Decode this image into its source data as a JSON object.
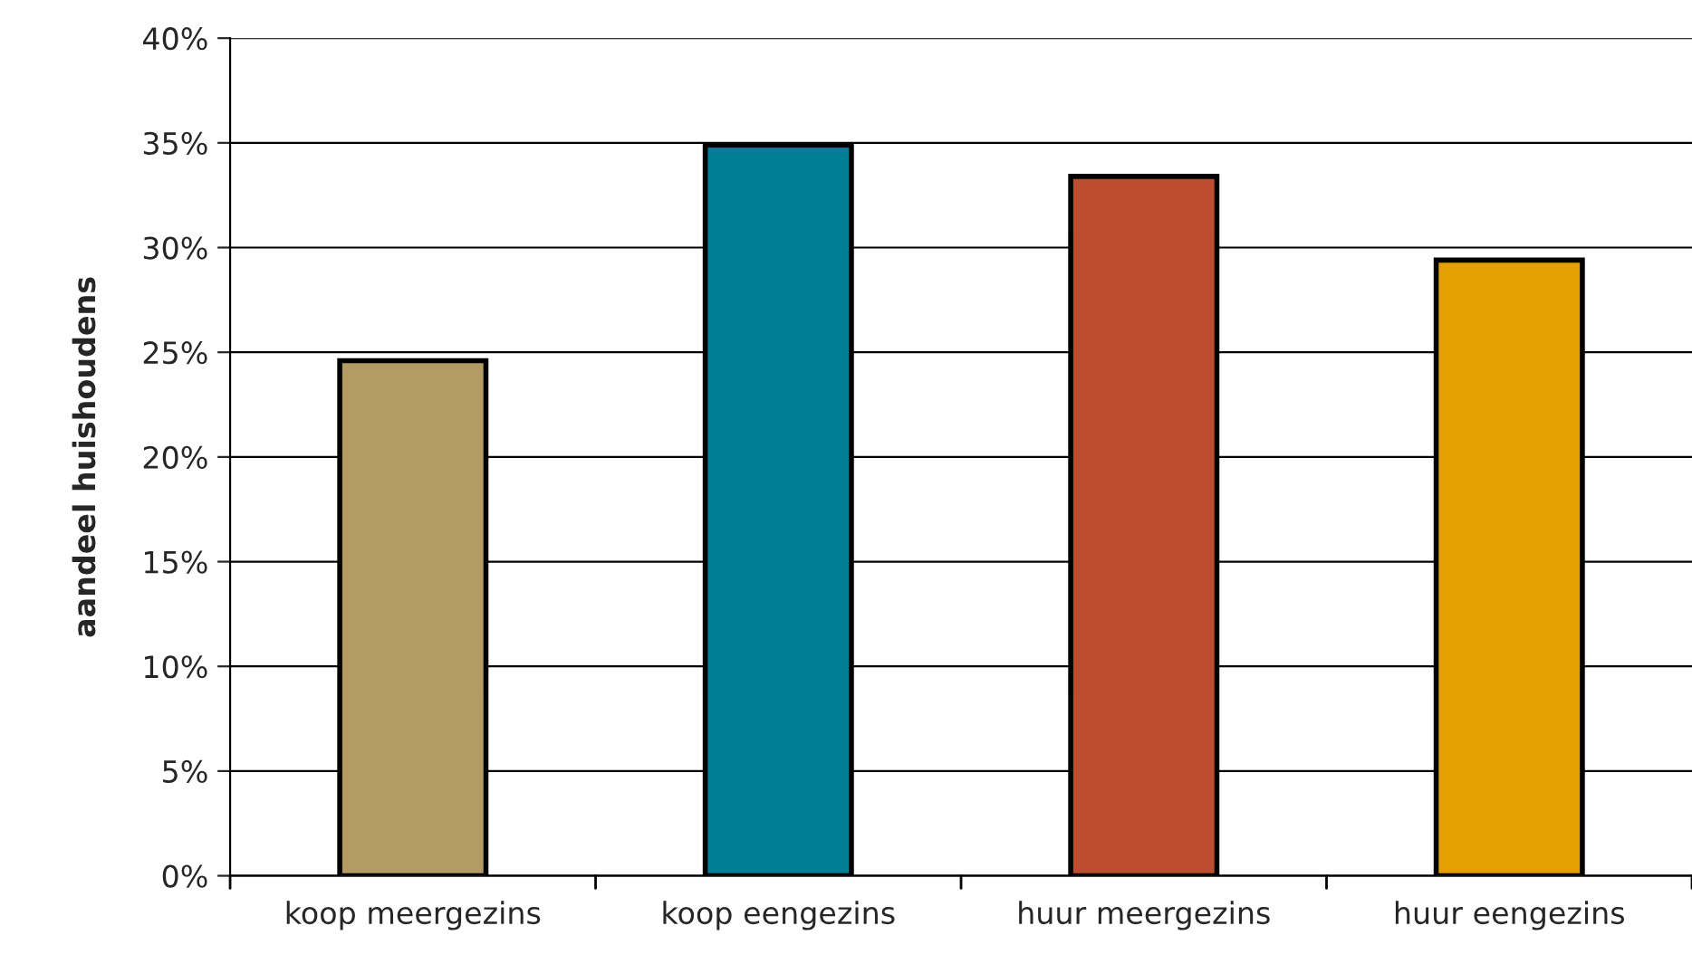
{
  "chart_data": {
    "type": "bar",
    "ylabel": "aandeel huishoudens",
    "categories": [
      "koop meergezins",
      "koop eengezins",
      "huur meergezins",
      "huur eengezins"
    ],
    "values": [
      24.6,
      34.9,
      33.4,
      29.4
    ],
    "colors": [
      "#b39b62",
      "#007e95",
      "#bd4d2f",
      "#e3a000"
    ],
    "ylim": [
      0,
      40
    ],
    "yticks": [
      {
        "value": 0,
        "label": "0%"
      },
      {
        "value": 5,
        "label": "5%"
      },
      {
        "value": 10,
        "label": "10%"
      },
      {
        "value": 15,
        "label": "15%"
      },
      {
        "value": 20,
        "label": "20%"
      },
      {
        "value": 25,
        "label": "25%"
      },
      {
        "value": 30,
        "label": "30%"
      },
      {
        "value": 35,
        "label": "35%"
      },
      {
        "value": 40,
        "label": "40%"
      }
    ],
    "grid": "y",
    "legend": false
  }
}
